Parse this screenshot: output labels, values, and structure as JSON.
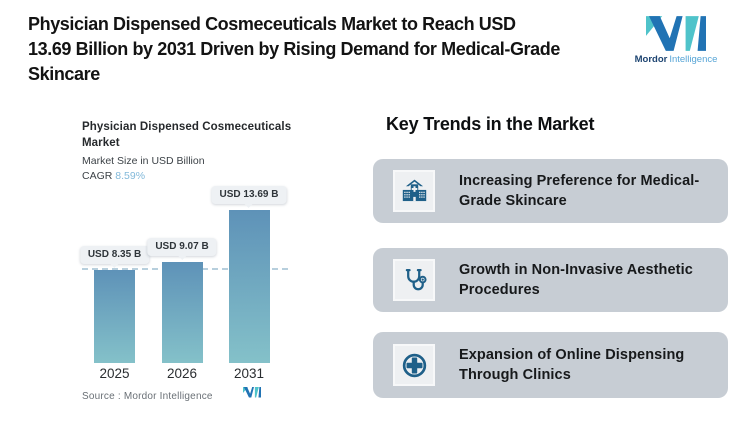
{
  "page": {
    "background": "#ffffff"
  },
  "header": {
    "title": "Physician Dispensed Cosmeceuticals Market to Reach USD 13.69 Billion by 2031 Driven by Rising Demand for Medical-Grade Skincare",
    "title_lines": [
      "Physician Dispensed Cosmeceuticals Market to Reach USD",
      "13.69 Billion by 2031 Driven by Rising Demand for Medical-Grade",
      "Skincare"
    ]
  },
  "logo": {
    "word_primary": "Mordor",
    "word_secondary": "Intelligence",
    "teal": "#4fc3ca",
    "blue": "#2173b4",
    "word_primary_color": "#1d4471",
    "word_secondary_color": "#57a5d6"
  },
  "chart": {
    "title": "Physician Dispensed Cosmeceuticals Market",
    "title_lines": [
      "Physician Dispensed Cosmeceuticals",
      "Market"
    ],
    "subtitle": "Market Size in USD Billion",
    "cagr_label": "CAGR",
    "cagr_value": "8.59%",
    "cagr_value_color": "#82b9da",
    "source": "Source :  Mordor Intelligence"
  },
  "chart_data": {
    "type": "bar",
    "title": "Physician Dispensed Cosmeceuticals Market",
    "subtitle": "Market Size in USD Billion",
    "unit": "USD Billion",
    "cagr": "8.59%",
    "categories": [
      "2025",
      "2026",
      "2031"
    ],
    "values": [
      8.35,
      9.07,
      13.69
    ],
    "value_labels": [
      "USD 8.35 B",
      "USD 9.07 B",
      "USD 13.69 B"
    ],
    "xlabel": "",
    "ylabel": "",
    "ylim": [
      0,
      15
    ],
    "grid": false,
    "legend": false,
    "bar_gradient_top": "#5e92b8",
    "bar_gradient_bottom": "#84c1c9",
    "reference_line": {
      "value": 8.35,
      "style": "dashed",
      "color": "#b7cfdd"
    }
  },
  "trends": {
    "heading": "Key Trends in the Market",
    "card_bg": "#c7cdd4",
    "icon_color": "#1f6089",
    "items": [
      {
        "icon": "hospital-icon",
        "text": "Increasing Preference for Medical-Grade Skincare",
        "lines": [
          "Increasing Preference for Medical-",
          "Grade Skincare"
        ]
      },
      {
        "icon": "stethoscope-icon",
        "text": "Growth in Non-Invasive Aesthetic Procedures",
        "lines": [
          "Growth in Non-Invasive Aesthetic",
          "Procedures"
        ]
      },
      {
        "icon": "medical-cross-icon",
        "text": "Expansion of Online Dispensing Through Clinics",
        "lines": [
          "Expansion of Online Dispensing",
          "Through Clinics"
        ]
      }
    ]
  }
}
